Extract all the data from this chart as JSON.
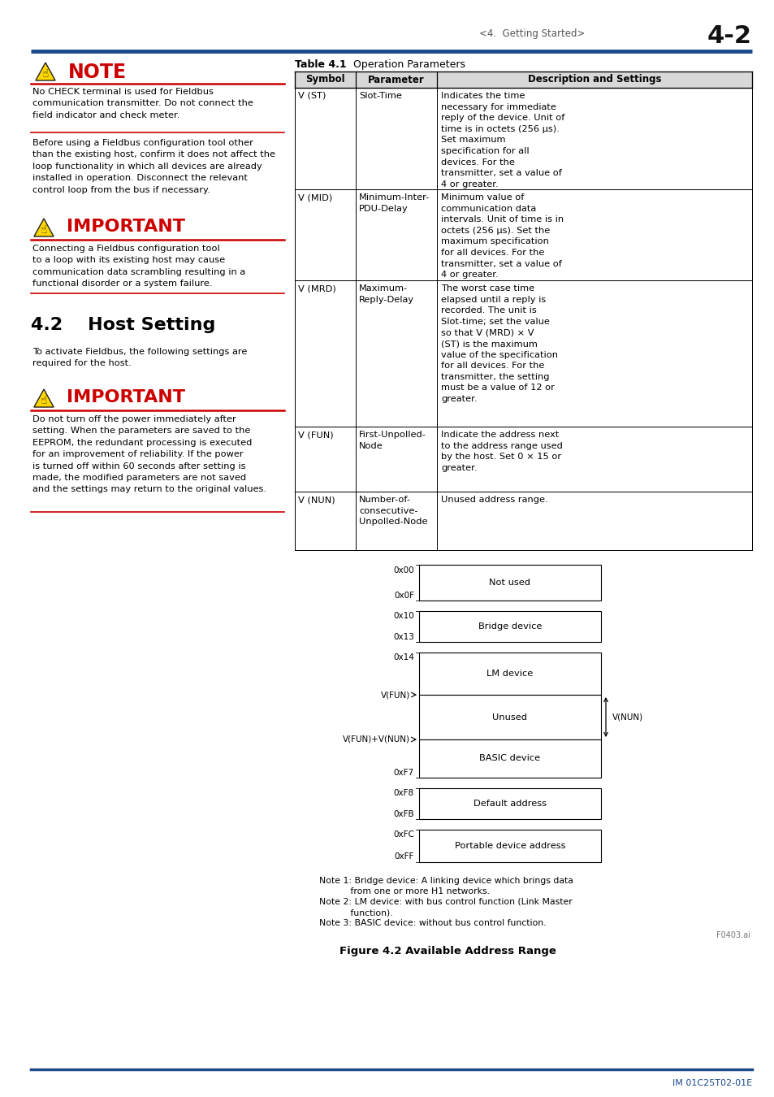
{
  "page_header_text": "<4.  Getting Started>",
  "page_number": "4-2",
  "header_line_color": "#1a4a8a",
  "table_title_bold": "Table 4.1",
  "table_title_rest": "     Operation Parameters",
  "table_headers": [
    "Symbol",
    "Parameter",
    "Description and Settings"
  ],
  "table_rows": [
    {
      "symbol": "V (ST)",
      "parameter": "Slot-Time",
      "description": "Indicates the time\nnecessary for immediate\nreply of the device. Unit of\ntime is in octets (256 μs).\nSet maximum\nspecification for all\ndevices. For the\ntransmitter, set a value of\n4 or greater."
    },
    {
      "symbol": "V (MID)",
      "parameter": "Minimum-Inter-\nPDU-Delay",
      "description": "Minimum value of\ncommunication data\nintervals. Unit of time is in\noctets (256 μs). Set the\nmaximum specification\nfor all devices. For the\ntransmitter, set a value of\n4 or greater."
    },
    {
      "symbol": "V (MRD)",
      "parameter": "Maximum-\nReply-Delay",
      "description": "The worst case time\nelapsed until a reply is\nrecorded. The unit is\nSlot-time; set the value\nso that V (MRD) × V\n(ST) is the maximum\nvalue of the specification\nfor all devices. For the\ntransmitter, the setting\nmust be a value of 12 or\ngreater."
    },
    {
      "symbol": "V (FUN)",
      "parameter": "First-Unpolled-\nNode",
      "description": "Indicate the address next\nto the address range used\nby the host. Set 0 × 15 or\ngreater."
    },
    {
      "symbol": "V (NUN)",
      "parameter": "Number-of-\nconsecutive-\nUnpolled-Node",
      "description": "Unused address range."
    }
  ],
  "note_title": "NOTE",
  "note_text": "No CHECK terminal is used for Fieldbus\ncommunication transmitter. Do not connect the\nfield indicator and check meter.",
  "note_text2": "Before using a Fieldbus configuration tool other\nthan the existing host, confirm it does not affect the\nloop functionality in which all devices are already\ninstalled in operation. Disconnect the relevant\ncontrol loop from the bus if necessary.",
  "important1_title": "IMPORTANT",
  "important1_text": "Connecting a Fieldbus configuration tool\nto a loop with its existing host may cause\ncommunication data scrambling resulting in a\nfunctional disorder or a system failure.",
  "section_title": "4.2    Host Setting",
  "section_text": "To activate Fieldbus, the following settings are\nrequired for the host.",
  "important2_title": "IMPORTANT",
  "important2_text": "Do not turn off the power immediately after\nsetting. When the parameters are saved to the\nEEPROM, the redundant processing is executed\nfor an improvement of reliability. If the power\nis turned off within 60 seconds after setting is\nmade, the modified parameters are not saved\nand the settings may return to the original values.",
  "diagram_boxes": [
    {
      "label": "Not used"
    },
    {
      "label": "Bridge device"
    },
    {
      "label": "LM device"
    },
    {
      "label": "Unused"
    },
    {
      "label": "BASIC device"
    },
    {
      "label": "Default address"
    },
    {
      "label": "Portable device address"
    }
  ],
  "figure_caption_bold": "Figure 4.2",
  "figure_caption_rest": "     Available Address Range",
  "figure_notes": [
    [
      "Note 1: Bridge device: A linking device which brings data",
      "           from one or more H1 networks."
    ],
    [
      "Note 2: LM device: with bus control function (Link Master",
      "           function)."
    ],
    [
      "Note 3: BASIC device: without bus control function."
    ]
  ],
  "footer_text": "IM 01C25T02-01E",
  "bg_color": "#ffffff",
  "red_color": "#cc0000",
  "blue_header_color": "#1a4a8a",
  "text_color": "#000000",
  "yellow_tri": "#FFD700",
  "table_header_bg": "#e0e0e0"
}
